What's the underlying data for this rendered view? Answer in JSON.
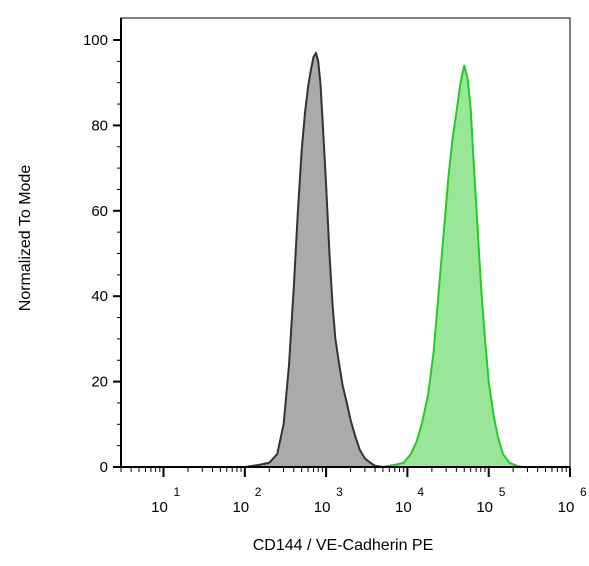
{
  "chart_data": {
    "type": "area",
    "xlabel": "CD144 / VE-Cadherin PE",
    "ylabel": "Normalized To Mode",
    "x_scale": "log",
    "xlim": [
      3,
      1000000
    ],
    "ylim": [
      0,
      105
    ],
    "y_ticks": [
      {
        "value": 0,
        "label": "0"
      },
      {
        "value": 20,
        "label": "20"
      },
      {
        "value": 40,
        "label": "40"
      },
      {
        "value": 60,
        "label": "60"
      },
      {
        "value": 80,
        "label": "80"
      },
      {
        "value": 100,
        "label": "100"
      }
    ],
    "x_ticks": [
      {
        "value": 10,
        "base": "10",
        "exp": "1"
      },
      {
        "value": 100,
        "base": "10",
        "exp": "2"
      },
      {
        "value": 1000,
        "base": "10",
        "exp": "3"
      },
      {
        "value": 10000,
        "base": "10",
        "exp": "4"
      },
      {
        "value": 100000,
        "base": "10",
        "exp": "5"
      },
      {
        "value": 1000000,
        "base": "10",
        "exp": "6"
      }
    ],
    "grid": false,
    "legend": "none",
    "series": [
      {
        "fill": "#aaaaaa",
        "stroke": "#333333",
        "points": [
          [
            3,
            0
          ],
          [
            100,
            0
          ],
          [
            150,
            0.5
          ],
          [
            200,
            1
          ],
          [
            250,
            3
          ],
          [
            300,
            10
          ],
          [
            350,
            24
          ],
          [
            400,
            42
          ],
          [
            450,
            60
          ],
          [
            500,
            74
          ],
          [
            550,
            83
          ],
          [
            600,
            89
          ],
          [
            650,
            93
          ],
          [
            700,
            96
          ],
          [
            750,
            97
          ],
          [
            800,
            95
          ],
          [
            850,
            90
          ],
          [
            900,
            82
          ],
          [
            1000,
            66
          ],
          [
            1100,
            50
          ],
          [
            1200,
            38
          ],
          [
            1300,
            30
          ],
          [
            1450,
            24
          ],
          [
            1600,
            19
          ],
          [
            1800,
            15
          ],
          [
            2000,
            11
          ],
          [
            2300,
            7
          ],
          [
            2600,
            4
          ],
          [
            3000,
            2
          ],
          [
            3500,
            1
          ],
          [
            4000,
            0.3
          ],
          [
            5000,
            0
          ],
          [
            1000000,
            0
          ]
        ]
      },
      {
        "fill": "#99e699",
        "stroke": "#22cc22",
        "points": [
          [
            3,
            0
          ],
          [
            5000,
            0
          ],
          [
            7000,
            0.5
          ],
          [
            9000,
            1
          ],
          [
            11000,
            3
          ],
          [
            13000,
            6
          ],
          [
            15000,
            10
          ],
          [
            18000,
            17
          ],
          [
            21000,
            27
          ],
          [
            24000,
            40
          ],
          [
            28000,
            55
          ],
          [
            32000,
            68
          ],
          [
            36000,
            77
          ],
          [
            40000,
            83
          ],
          [
            45000,
            90
          ],
          [
            50000,
            94
          ],
          [
            55000,
            91
          ],
          [
            60000,
            84
          ],
          [
            65000,
            72
          ],
          [
            72000,
            58
          ],
          [
            80000,
            43
          ],
          [
            90000,
            30
          ],
          [
            100000,
            20
          ],
          [
            115000,
            12
          ],
          [
            130000,
            7
          ],
          [
            150000,
            3
          ],
          [
            180000,
            1
          ],
          [
            220000,
            0.3
          ],
          [
            260000,
            0
          ],
          [
            1000000,
            0
          ]
        ]
      }
    ]
  }
}
